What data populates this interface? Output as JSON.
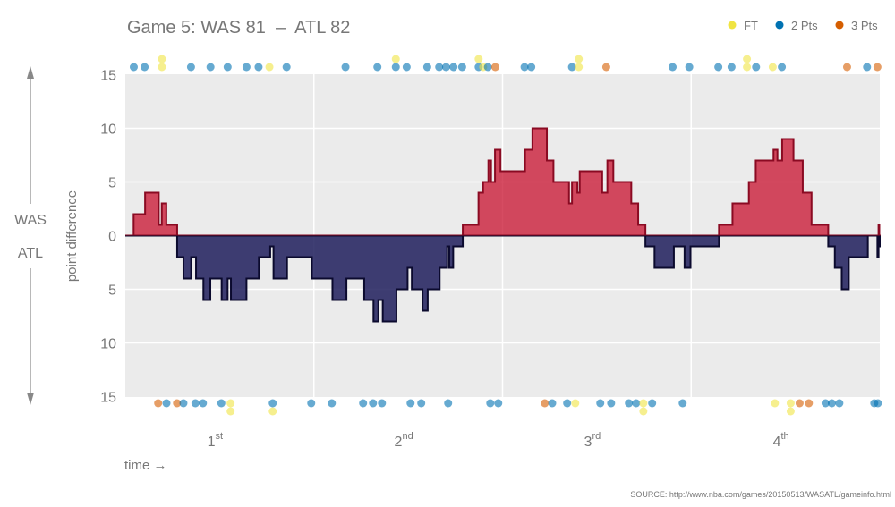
{
  "chart_data": {
    "type": "area",
    "title": "Game 5: WAS 81  –  ATL 82",
    "ylabel": "point difference",
    "xlabel": "time →",
    "source": "SOURCE: http://www.nba.com/games/20150513/WASATL/gameinfo.html",
    "team_top": "WAS",
    "team_bottom": "ATL",
    "xlim": [
      0,
      48
    ],
    "ylim": [
      -15,
      15
    ],
    "y_ticks": [
      15,
      10,
      5,
      0,
      -5,
      -10,
      -15
    ],
    "y_tick_labels": [
      "15",
      "10",
      "5",
      "0",
      "5",
      "10",
      "15"
    ],
    "quarters": [
      {
        "num": "1",
        "sup": "st"
      },
      {
        "num": "2",
        "sup": "nd"
      },
      {
        "num": "3",
        "sup": "rd"
      },
      {
        "num": "4",
        "sup": "th"
      }
    ],
    "legend": [
      {
        "label": "FT",
        "type": "FT"
      },
      {
        "label": "2 Pts",
        "type": "2"
      },
      {
        "label": "3 Pts",
        "type": "3"
      }
    ],
    "colors": {
      "FT": "#f0e442",
      "2": "#0072b2",
      "3": "#d55e00",
      "was_fill": "#c8102e",
      "was_stroke": "#8a0a22",
      "atl_fill": "#1f1d5c",
      "atl_stroke": "#0b0a2e"
    },
    "point_difference_steps": [
      [
        0,
        0
      ],
      [
        0.53,
        2
      ],
      [
        1.26,
        4
      ],
      [
        2.13,
        1
      ],
      [
        2.32,
        3
      ],
      [
        2.61,
        1
      ],
      [
        3.3,
        -2
      ],
      [
        3.7,
        -4
      ],
      [
        4.19,
        -2
      ],
      [
        4.5,
        -4
      ],
      [
        4.97,
        -6
      ],
      [
        5.41,
        -4
      ],
      [
        6.13,
        -6
      ],
      [
        6.51,
        -4
      ],
      [
        6.72,
        -6
      ],
      [
        7.71,
        -4
      ],
      [
        8.5,
        -2
      ],
      [
        9.22,
        -1
      ],
      [
        9.43,
        -4
      ],
      [
        10.29,
        -2
      ],
      [
        11.87,
        -4
      ],
      [
        13.18,
        -6
      ],
      [
        14.07,
        -4
      ],
      [
        15.2,
        -6
      ],
      [
        15.79,
        -8
      ],
      [
        16.1,
        -6
      ],
      [
        16.38,
        -8
      ],
      [
        17.25,
        -5
      ],
      [
        17.96,
        -3
      ],
      [
        18.23,
        -5
      ],
      [
        18.91,
        -7
      ],
      [
        19.24,
        -5
      ],
      [
        20.0,
        -3
      ],
      [
        20.48,
        -1
      ],
      [
        20.61,
        -3
      ],
      [
        20.86,
        -1
      ],
      [
        21.47,
        1
      ],
      [
        22.47,
        4
      ],
      [
        22.76,
        5
      ],
      [
        23.1,
        7
      ],
      [
        23.27,
        5
      ],
      [
        23.52,
        8
      ],
      [
        23.87,
        6
      ],
      [
        25.43,
        8
      ],
      [
        25.9,
        10
      ],
      [
        26.82,
        7
      ],
      [
        27.24,
        5
      ],
      [
        28.23,
        3
      ],
      [
        28.42,
        5
      ],
      [
        28.76,
        4
      ],
      [
        28.91,
        6
      ],
      [
        30.34,
        4
      ],
      [
        30.67,
        7
      ],
      [
        31.05,
        5
      ],
      [
        32.19,
        3
      ],
      [
        32.63,
        1
      ],
      [
        33.09,
        -1
      ],
      [
        33.67,
        -3
      ],
      [
        34.9,
        -1
      ],
      [
        35.58,
        -3
      ],
      [
        35.96,
        -1
      ],
      [
        37.77,
        1
      ],
      [
        38.63,
        3
      ],
      [
        39.67,
        5
      ],
      [
        40.11,
        7
      ],
      [
        41.24,
        8
      ],
      [
        41.49,
        7
      ],
      [
        41.79,
        9
      ],
      [
        42.51,
        7
      ],
      [
        43.1,
        4
      ],
      [
        43.66,
        1
      ],
      [
        44.72,
        -1
      ],
      [
        45.14,
        -3
      ],
      [
        45.58,
        -5
      ],
      [
        46.03,
        -2
      ],
      [
        47.24,
        0
      ],
      [
        47.85,
        -2
      ],
      [
        47.92,
        1
      ],
      [
        47.97,
        -1
      ]
    ],
    "was_scoring": [
      [
        0.54,
        "2"
      ],
      [
        1.23,
        "2"
      ],
      [
        2.33,
        "FT"
      ],
      [
        2.33,
        "FT"
      ],
      [
        4.18,
        "2"
      ],
      [
        5.42,
        "2"
      ],
      [
        6.51,
        "2"
      ],
      [
        7.71,
        "2"
      ],
      [
        8.48,
        "2"
      ],
      [
        9.17,
        "FT"
      ],
      [
        10.26,
        "2"
      ],
      [
        14.01,
        "2"
      ],
      [
        16.04,
        "2"
      ],
      [
        17.21,
        "2"
      ],
      [
        17.21,
        "FT"
      ],
      [
        17.9,
        "2"
      ],
      [
        19.21,
        "2"
      ],
      [
        19.97,
        "2"
      ],
      [
        20.41,
        "2"
      ],
      [
        20.88,
        "2"
      ],
      [
        21.43,
        "2"
      ],
      [
        22.48,
        "2"
      ],
      [
        22.48,
        "FT"
      ],
      [
        22.77,
        "FT"
      ],
      [
        23.07,
        "2"
      ],
      [
        23.54,
        "3"
      ],
      [
        25.4,
        "2"
      ],
      [
        25.83,
        "2"
      ],
      [
        28.42,
        "2"
      ],
      [
        28.85,
        "FT"
      ],
      [
        28.85,
        "FT"
      ],
      [
        30.6,
        "3"
      ],
      [
        34.82,
        "2"
      ],
      [
        35.88,
        "2"
      ],
      [
        37.73,
        "2"
      ],
      [
        38.57,
        "2"
      ],
      [
        39.55,
        "FT"
      ],
      [
        39.55,
        "FT"
      ],
      [
        40.13,
        "2"
      ],
      [
        41.19,
        "FT"
      ],
      [
        41.77,
        "2"
      ],
      [
        45.92,
        "3"
      ],
      [
        47.19,
        "2"
      ],
      [
        47.85,
        "3"
      ]
    ],
    "atl_scoring": [
      [
        2.09,
        "3"
      ],
      [
        2.62,
        "2"
      ],
      [
        3.29,
        "3"
      ],
      [
        3.7,
        "2"
      ],
      [
        4.46,
        "2"
      ],
      [
        4.94,
        "2"
      ],
      [
        6.11,
        "2"
      ],
      [
        6.7,
        "FT"
      ],
      [
        6.7,
        "FT"
      ],
      [
        9.38,
        "2"
      ],
      [
        9.38,
        "FT"
      ],
      [
        11.83,
        "2"
      ],
      [
        13.14,
        "2"
      ],
      [
        15.13,
        "2"
      ],
      [
        15.76,
        "2"
      ],
      [
        16.33,
        "2"
      ],
      [
        18.15,
        "2"
      ],
      [
        18.83,
        "2"
      ],
      [
        20.54,
        "2"
      ],
      [
        23.22,
        "2"
      ],
      [
        23.73,
        "2"
      ],
      [
        26.69,
        "3"
      ],
      [
        27.16,
        "2"
      ],
      [
        28.11,
        "2"
      ],
      [
        28.63,
        "FT"
      ],
      [
        30.22,
        "2"
      ],
      [
        30.91,
        "2"
      ],
      [
        32.04,
        "2"
      ],
      [
        32.5,
        "2"
      ],
      [
        32.96,
        "FT"
      ],
      [
        32.96,
        "FT"
      ],
      [
        33.52,
        "2"
      ],
      [
        35.46,
        "2"
      ],
      [
        41.33,
        "FT"
      ],
      [
        42.33,
        "FT"
      ],
      [
        42.33,
        "FT"
      ],
      [
        42.9,
        "3"
      ],
      [
        43.49,
        "3"
      ],
      [
        44.55,
        "2"
      ],
      [
        44.95,
        "2"
      ],
      [
        45.43,
        "2"
      ],
      [
        47.65,
        "2"
      ],
      [
        47.88,
        "2"
      ]
    ]
  }
}
